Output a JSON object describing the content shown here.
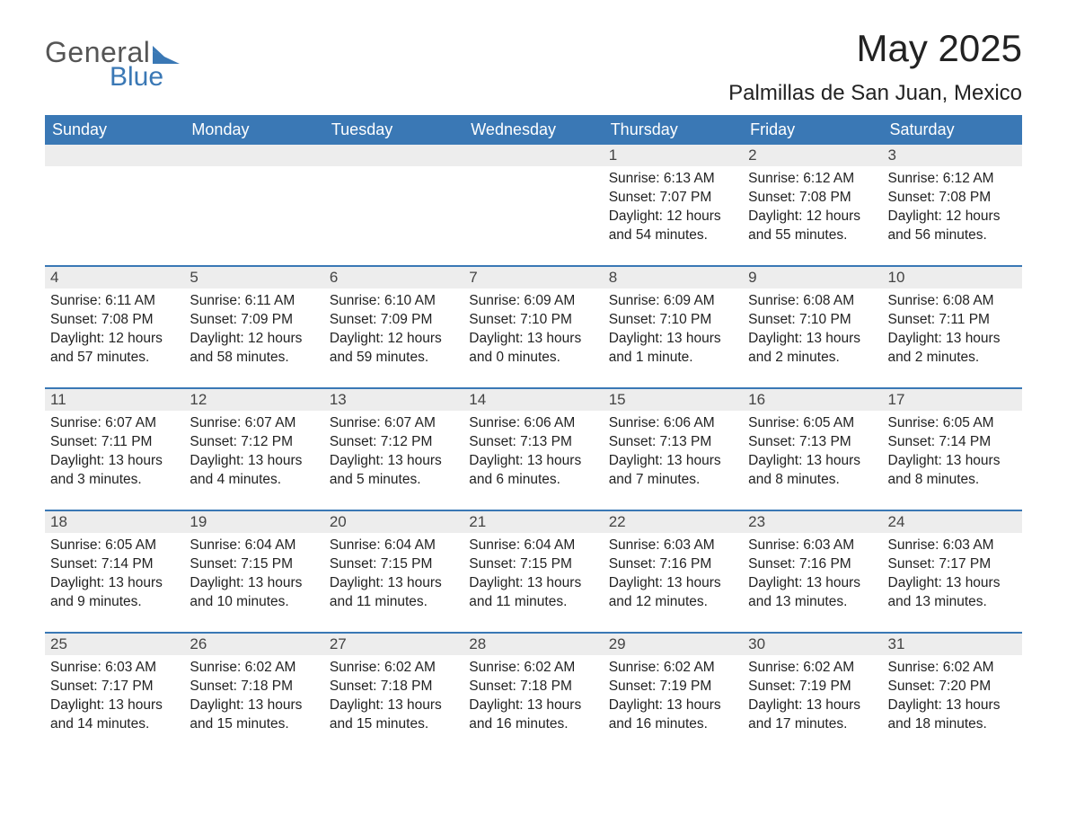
{
  "logo": {
    "word1": "General",
    "word2": "Blue",
    "shape_color": "#3a78b5"
  },
  "title": "May 2025",
  "location": "Palmillas de San Juan, Mexico",
  "colors": {
    "header_bg": "#3a78b5",
    "header_text": "#ffffff",
    "daynum_bg": "#ededed",
    "week_border": "#3a78b5",
    "body_text": "#222222",
    "page_bg": "#ffffff"
  },
  "weekday_labels": [
    "Sunday",
    "Monday",
    "Tuesday",
    "Wednesday",
    "Thursday",
    "Friday",
    "Saturday"
  ],
  "weeks": [
    {
      "days": [
        {
          "num": "",
          "lines": []
        },
        {
          "num": "",
          "lines": []
        },
        {
          "num": "",
          "lines": []
        },
        {
          "num": "",
          "lines": []
        },
        {
          "num": "1",
          "lines": [
            "Sunrise: 6:13 AM",
            "Sunset: 7:07 PM",
            "Daylight: 12 hours",
            "and 54 minutes."
          ]
        },
        {
          "num": "2",
          "lines": [
            "Sunrise: 6:12 AM",
            "Sunset: 7:08 PM",
            "Daylight: 12 hours",
            "and 55 minutes."
          ]
        },
        {
          "num": "3",
          "lines": [
            "Sunrise: 6:12 AM",
            "Sunset: 7:08 PM",
            "Daylight: 12 hours",
            "and 56 minutes."
          ]
        }
      ]
    },
    {
      "days": [
        {
          "num": "4",
          "lines": [
            "Sunrise: 6:11 AM",
            "Sunset: 7:08 PM",
            "Daylight: 12 hours",
            "and 57 minutes."
          ]
        },
        {
          "num": "5",
          "lines": [
            "Sunrise: 6:11 AM",
            "Sunset: 7:09 PM",
            "Daylight: 12 hours",
            "and 58 minutes."
          ]
        },
        {
          "num": "6",
          "lines": [
            "Sunrise: 6:10 AM",
            "Sunset: 7:09 PM",
            "Daylight: 12 hours",
            "and 59 minutes."
          ]
        },
        {
          "num": "7",
          "lines": [
            "Sunrise: 6:09 AM",
            "Sunset: 7:10 PM",
            "Daylight: 13 hours",
            "and 0 minutes."
          ]
        },
        {
          "num": "8",
          "lines": [
            "Sunrise: 6:09 AM",
            "Sunset: 7:10 PM",
            "Daylight: 13 hours",
            "and 1 minute."
          ]
        },
        {
          "num": "9",
          "lines": [
            "Sunrise: 6:08 AM",
            "Sunset: 7:10 PM",
            "Daylight: 13 hours",
            "and 2 minutes."
          ]
        },
        {
          "num": "10",
          "lines": [
            "Sunrise: 6:08 AM",
            "Sunset: 7:11 PM",
            "Daylight: 13 hours",
            "and 2 minutes."
          ]
        }
      ]
    },
    {
      "days": [
        {
          "num": "11",
          "lines": [
            "Sunrise: 6:07 AM",
            "Sunset: 7:11 PM",
            "Daylight: 13 hours",
            "and 3 minutes."
          ]
        },
        {
          "num": "12",
          "lines": [
            "Sunrise: 6:07 AM",
            "Sunset: 7:12 PM",
            "Daylight: 13 hours",
            "and 4 minutes."
          ]
        },
        {
          "num": "13",
          "lines": [
            "Sunrise: 6:07 AM",
            "Sunset: 7:12 PM",
            "Daylight: 13 hours",
            "and 5 minutes."
          ]
        },
        {
          "num": "14",
          "lines": [
            "Sunrise: 6:06 AM",
            "Sunset: 7:13 PM",
            "Daylight: 13 hours",
            "and 6 minutes."
          ]
        },
        {
          "num": "15",
          "lines": [
            "Sunrise: 6:06 AM",
            "Sunset: 7:13 PM",
            "Daylight: 13 hours",
            "and 7 minutes."
          ]
        },
        {
          "num": "16",
          "lines": [
            "Sunrise: 6:05 AM",
            "Sunset: 7:13 PM",
            "Daylight: 13 hours",
            "and 8 minutes."
          ]
        },
        {
          "num": "17",
          "lines": [
            "Sunrise: 6:05 AM",
            "Sunset: 7:14 PM",
            "Daylight: 13 hours",
            "and 8 minutes."
          ]
        }
      ]
    },
    {
      "days": [
        {
          "num": "18",
          "lines": [
            "Sunrise: 6:05 AM",
            "Sunset: 7:14 PM",
            "Daylight: 13 hours",
            "and 9 minutes."
          ]
        },
        {
          "num": "19",
          "lines": [
            "Sunrise: 6:04 AM",
            "Sunset: 7:15 PM",
            "Daylight: 13 hours",
            "and 10 minutes."
          ]
        },
        {
          "num": "20",
          "lines": [
            "Sunrise: 6:04 AM",
            "Sunset: 7:15 PM",
            "Daylight: 13 hours",
            "and 11 minutes."
          ]
        },
        {
          "num": "21",
          "lines": [
            "Sunrise: 6:04 AM",
            "Sunset: 7:15 PM",
            "Daylight: 13 hours",
            "and 11 minutes."
          ]
        },
        {
          "num": "22",
          "lines": [
            "Sunrise: 6:03 AM",
            "Sunset: 7:16 PM",
            "Daylight: 13 hours",
            "and 12 minutes."
          ]
        },
        {
          "num": "23",
          "lines": [
            "Sunrise: 6:03 AM",
            "Sunset: 7:16 PM",
            "Daylight: 13 hours",
            "and 13 minutes."
          ]
        },
        {
          "num": "24",
          "lines": [
            "Sunrise: 6:03 AM",
            "Sunset: 7:17 PM",
            "Daylight: 13 hours",
            "and 13 minutes."
          ]
        }
      ]
    },
    {
      "days": [
        {
          "num": "25",
          "lines": [
            "Sunrise: 6:03 AM",
            "Sunset: 7:17 PM",
            "Daylight: 13 hours",
            "and 14 minutes."
          ]
        },
        {
          "num": "26",
          "lines": [
            "Sunrise: 6:02 AM",
            "Sunset: 7:18 PM",
            "Daylight: 13 hours",
            "and 15 minutes."
          ]
        },
        {
          "num": "27",
          "lines": [
            "Sunrise: 6:02 AM",
            "Sunset: 7:18 PM",
            "Daylight: 13 hours",
            "and 15 minutes."
          ]
        },
        {
          "num": "28",
          "lines": [
            "Sunrise: 6:02 AM",
            "Sunset: 7:18 PM",
            "Daylight: 13 hours",
            "and 16 minutes."
          ]
        },
        {
          "num": "29",
          "lines": [
            "Sunrise: 6:02 AM",
            "Sunset: 7:19 PM",
            "Daylight: 13 hours",
            "and 16 minutes."
          ]
        },
        {
          "num": "30",
          "lines": [
            "Sunrise: 6:02 AM",
            "Sunset: 7:19 PM",
            "Daylight: 13 hours",
            "and 17 minutes."
          ]
        },
        {
          "num": "31",
          "lines": [
            "Sunrise: 6:02 AM",
            "Sunset: 7:20 PM",
            "Daylight: 13 hours",
            "and 18 minutes."
          ]
        }
      ]
    }
  ]
}
